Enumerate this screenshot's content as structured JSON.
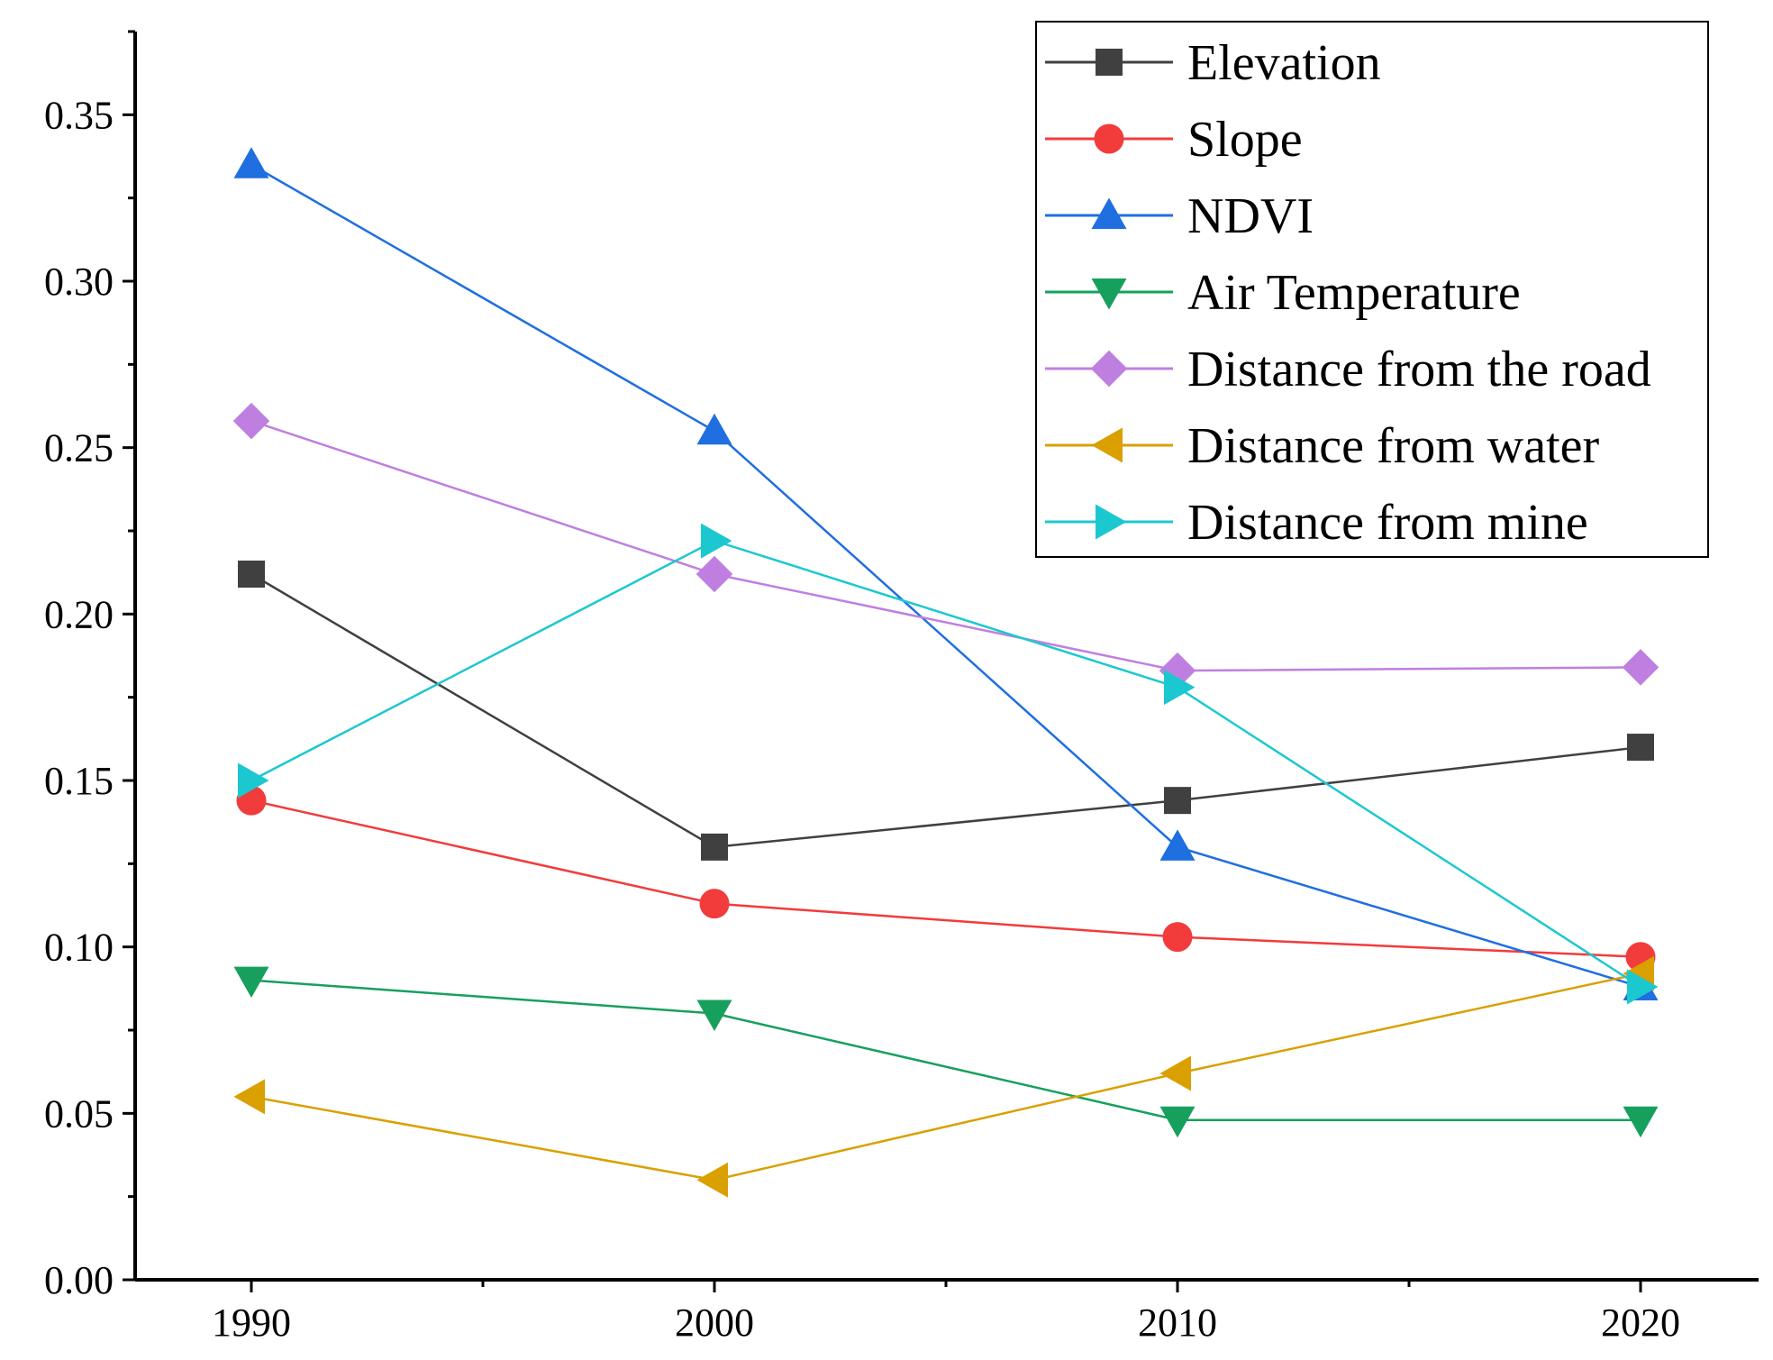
{
  "chart_data": {
    "type": "line",
    "title": "",
    "xlabel": "",
    "ylabel": "",
    "x": [
      1990,
      2000,
      2010,
      2020
    ],
    "x_tick_labels": [
      "1990",
      "2000",
      "2010",
      "2020"
    ],
    "ylim": [
      0.0,
      0.375
    ],
    "y_ticks": [
      0.0,
      0.05,
      0.1,
      0.15,
      0.2,
      0.25,
      0.3,
      0.35
    ],
    "y_tick_labels": [
      "0.00",
      "0.05",
      "0.10",
      "0.15",
      "0.20",
      "0.25",
      "0.30",
      "0.35"
    ],
    "grid": false,
    "legend_position": "top-right",
    "series": [
      {
        "name": "Elevation",
        "color": "#404040",
        "marker": "square",
        "values": [
          0.212,
          0.13,
          0.144,
          0.16
        ]
      },
      {
        "name": "Slope",
        "color": "#f23b3b",
        "marker": "circle",
        "values": [
          0.144,
          0.113,
          0.103,
          0.097
        ]
      },
      {
        "name": "NDVI",
        "color": "#1f6fe0",
        "marker": "triangle-up",
        "values": [
          0.335,
          0.255,
          0.13,
          0.088
        ]
      },
      {
        "name": "Air Temperature",
        "color": "#17a05d",
        "marker": "triangle-down",
        "values": [
          0.09,
          0.08,
          0.048,
          0.048
        ]
      },
      {
        "name": "Distance from the road",
        "color": "#bf7fe0",
        "marker": "diamond",
        "values": [
          0.258,
          0.212,
          0.183,
          0.184
        ]
      },
      {
        "name": "Distance from water",
        "color": "#daa000",
        "marker": "triangle-left",
        "values": [
          0.055,
          0.03,
          0.062,
          0.092
        ]
      },
      {
        "name": "Distance from mine",
        "color": "#1cc8d0",
        "marker": "triangle-right",
        "values": [
          0.15,
          0.222,
          0.178,
          0.088
        ]
      }
    ]
  }
}
